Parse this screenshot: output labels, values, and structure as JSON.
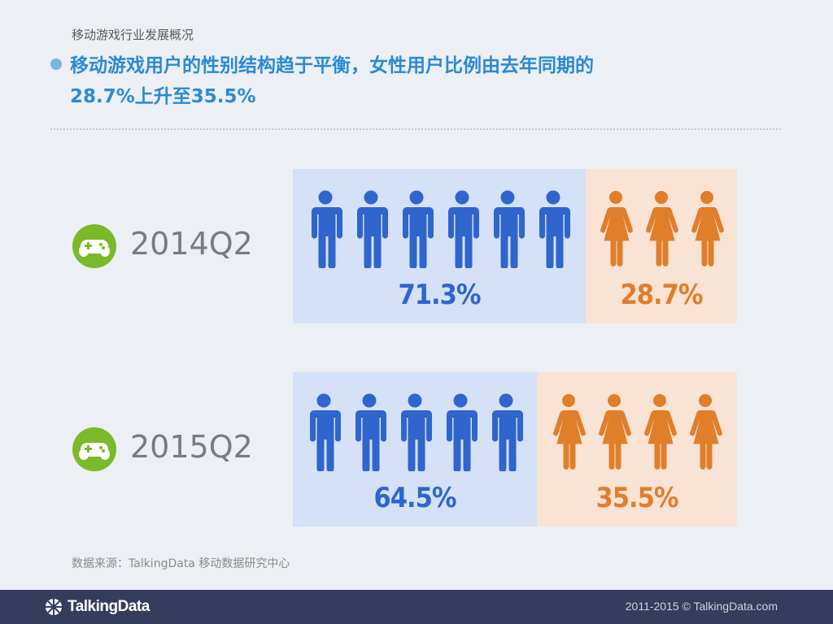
{
  "header": {
    "section": "移动游戏行业发展概况",
    "headline_line1": "移动游戏用户的性别结构趋于平衡，女性用户比例由去年同期的",
    "headline_line2": "28.7%上升至35.5%"
  },
  "colors": {
    "male": "#2f65cc",
    "female": "#e07e2a",
    "male_bg": "#d4e1f6",
    "female_bg": "#f9e3d5",
    "icon_green": "#7ab929",
    "headline": "#2a8ad3"
  },
  "icons": {
    "period": "gamepad-icon",
    "male": "male-person-icon",
    "female": "female-person-icon"
  },
  "chart_data": {
    "type": "pictograph",
    "categories": [
      "2014Q2",
      "2015Q2"
    ],
    "series": [
      {
        "name": "男性",
        "values": [
          71.3,
          64.5
        ],
        "labels": [
          "71.3%",
          "64.5%"
        ],
        "icon_counts": [
          6,
          5
        ]
      },
      {
        "name": "女性",
        "values": [
          28.7,
          35.5
        ],
        "labels": [
          "28.7%",
          "35.5%"
        ],
        "icon_counts": [
          3,
          4
        ]
      }
    ]
  },
  "source": "数据来源：TalkingData 移动数据研究中心",
  "footer": {
    "logo_text": "TalkingData",
    "copyright": "2011-2015 © TalkingData.com"
  }
}
